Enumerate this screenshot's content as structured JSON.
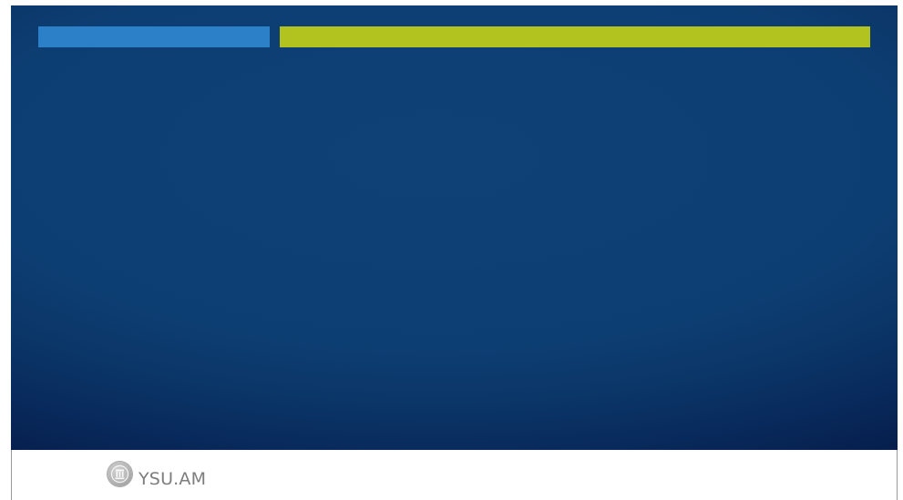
{
  "footer": {
    "site_label": "YSU.AM",
    "logo_icon": "university-seal-icon"
  },
  "colors": {
    "background_blue": "#0d3e73",
    "accent_blue_bar": "#2c80c8",
    "accent_green_bar": "#b2c21f",
    "footer_text": "#7d7d7d"
  }
}
